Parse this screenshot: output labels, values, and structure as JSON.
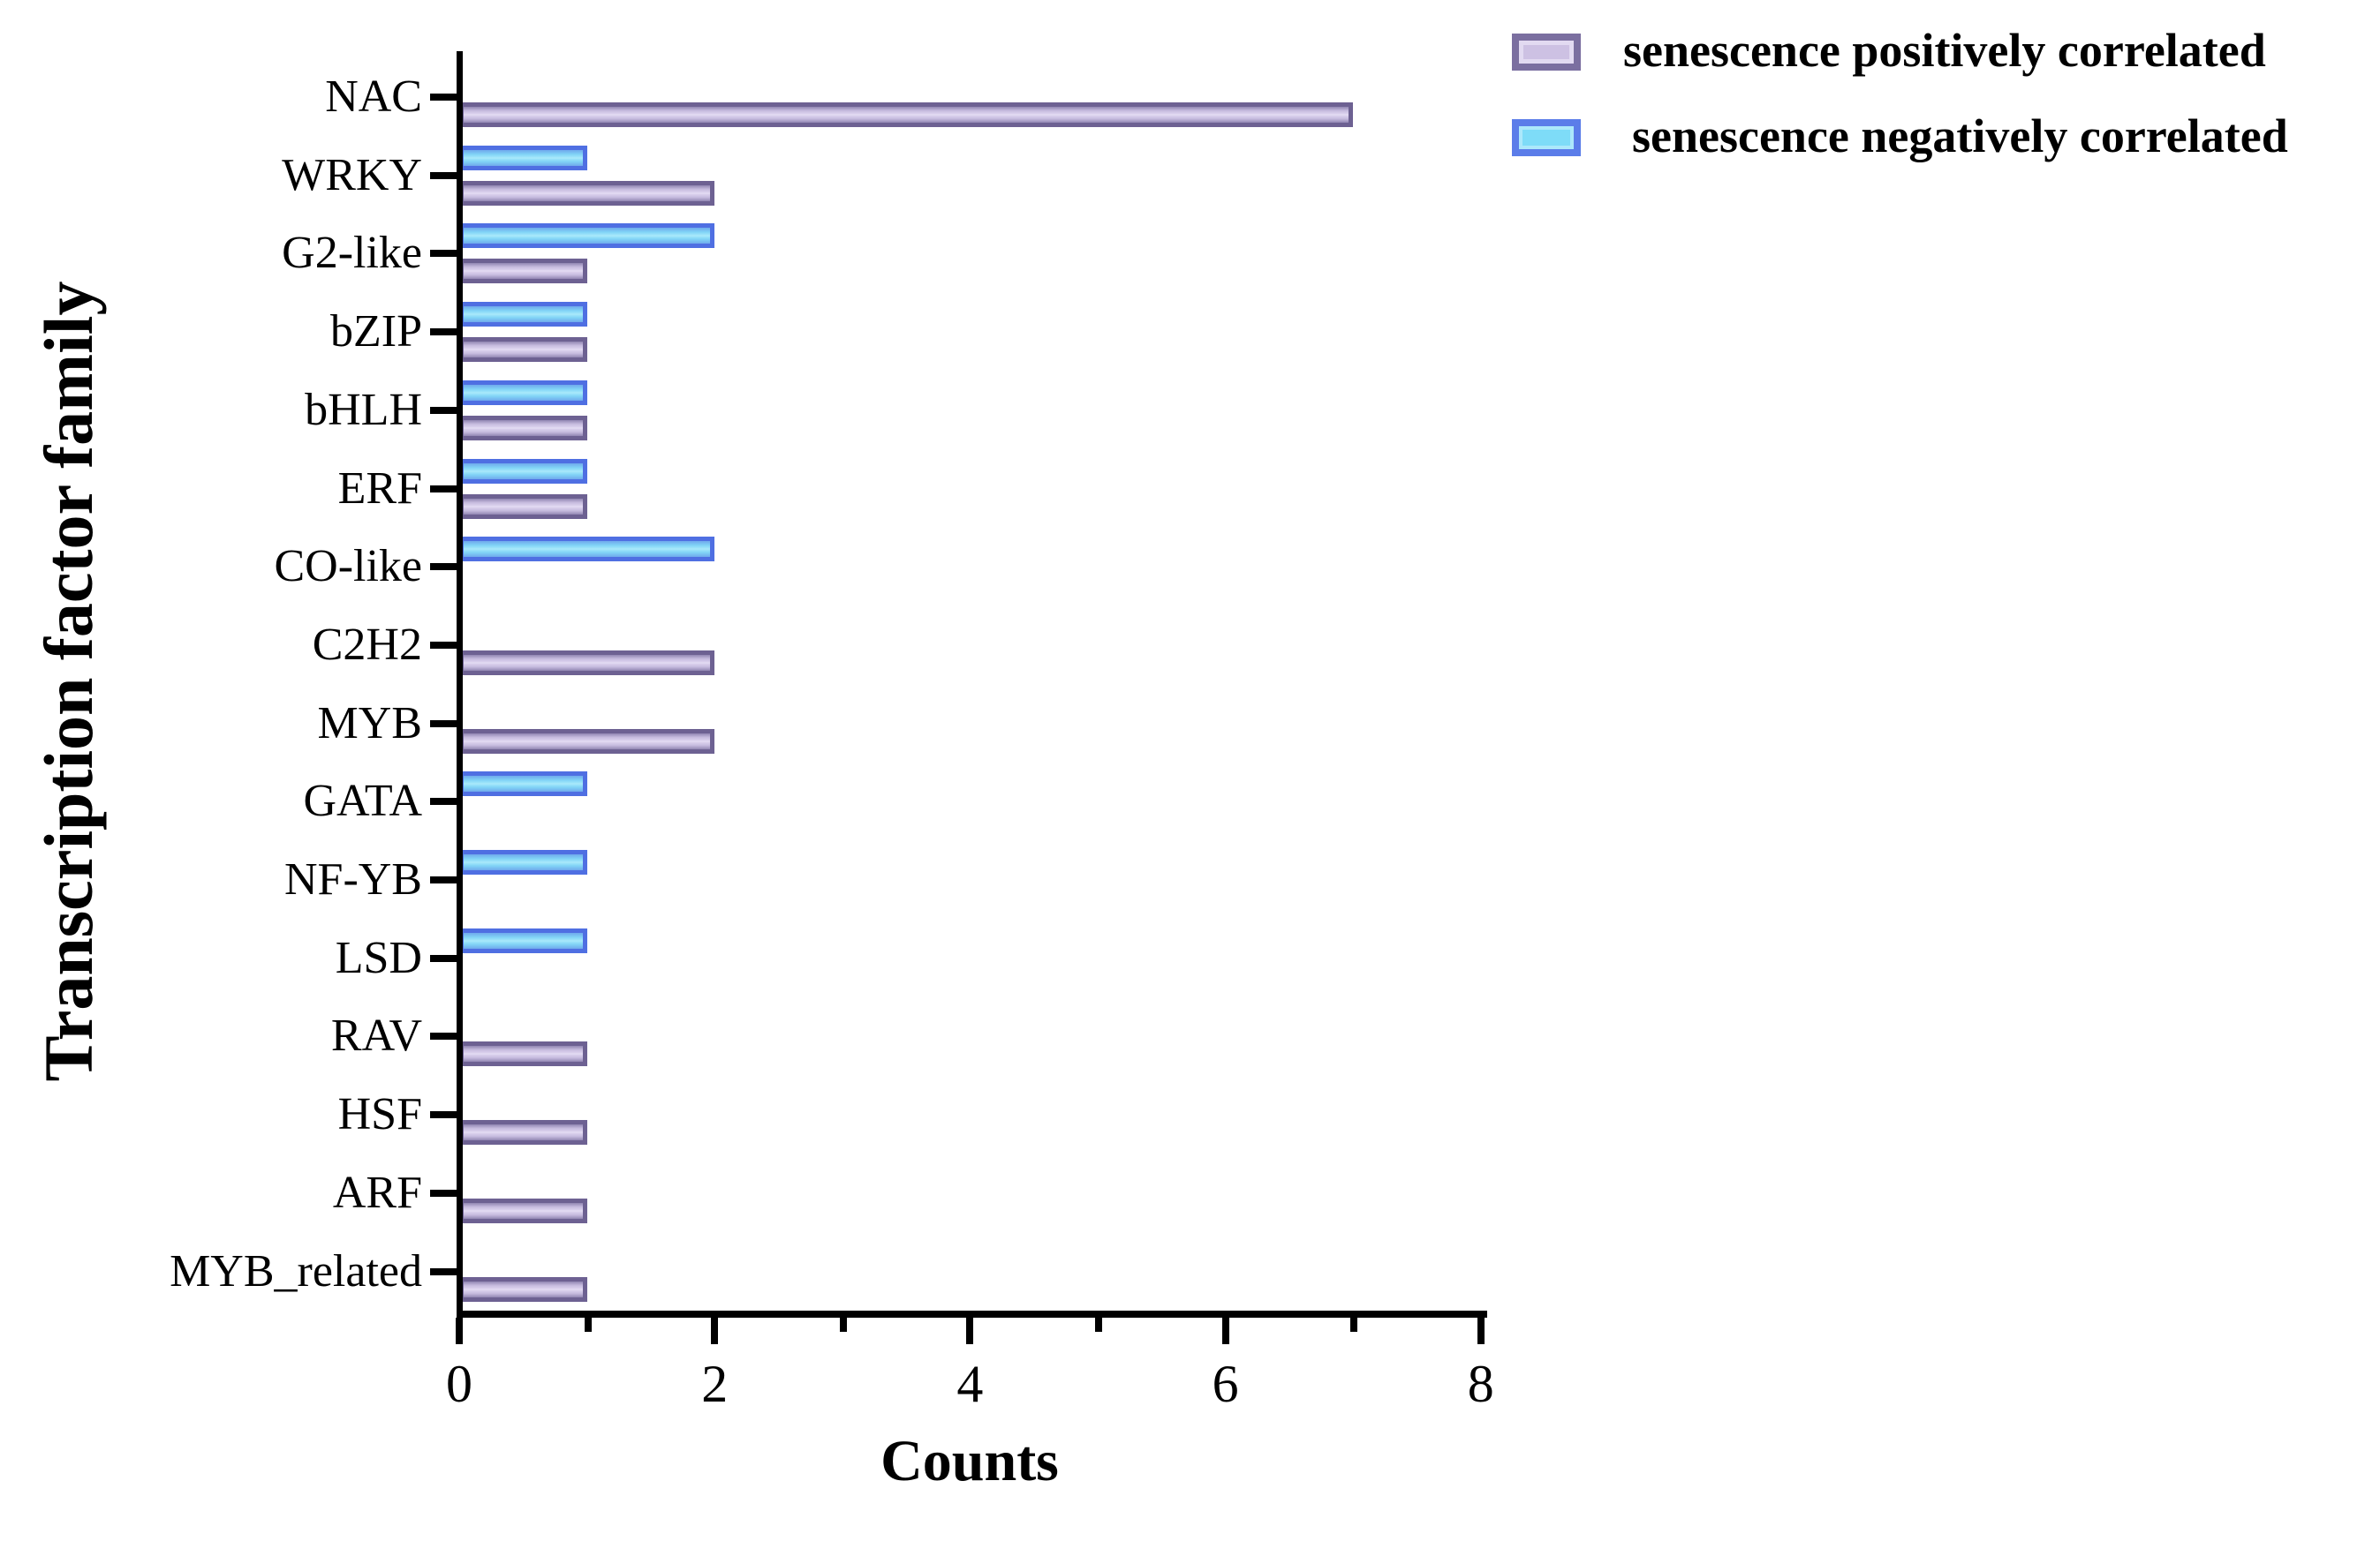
{
  "figure": {
    "background": "#ffffff",
    "text_color": "#000000"
  },
  "chart_data": {
    "type": "bar",
    "orientation": "horizontal",
    "xlabel": "Counts",
    "ylabel": "Transcription factor family",
    "xlim": [
      0,
      8
    ],
    "x_major_ticks": [
      0,
      2,
      4,
      6,
      8
    ],
    "x_minor_ticks": [
      1,
      3,
      5,
      7
    ],
    "grid": false,
    "legend_position": "top-right",
    "categories": [
      "NAC",
      "WRKY",
      "G2-like",
      "bZIP",
      "bHLH",
      "ERF",
      "CO-like",
      "C2H2",
      "MYB",
      "GATA",
      "NF-YB",
      "LSD",
      "RAV",
      "HSF",
      "ARF",
      "MYB_related"
    ],
    "series": [
      {
        "name": "senescence positively correlated",
        "fill_color": "#cdc1e3",
        "border_color": "#6d6192",
        "values": [
          7,
          2,
          1,
          1,
          1,
          1,
          0,
          2,
          2,
          0,
          0,
          0,
          1,
          1,
          1,
          1
        ]
      },
      {
        "name": "senescence negatively correlated",
        "fill_color": "#7edcf8",
        "border_color": "#4f6fe2",
        "values": [
          0,
          1,
          2,
          1,
          1,
          1,
          2,
          0,
          0,
          1,
          1,
          1,
          0,
          0,
          0,
          0
        ]
      }
    ]
  }
}
